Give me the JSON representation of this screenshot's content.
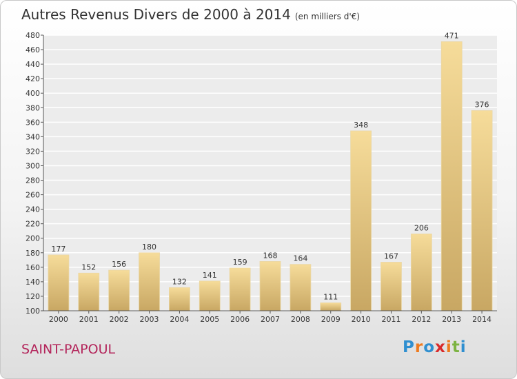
{
  "header": {
    "title": "Autres Revenus Divers de 2000 à 2014",
    "subtitle": "(en milliers d'€)"
  },
  "commune": "SAINT-PAPOUL",
  "logo": {
    "text": "Proxiti",
    "letters": [
      "P",
      "r",
      "o",
      "x",
      "i",
      "t",
      "i"
    ],
    "colors": [
      "#2f8fd0",
      "#ee7a1e",
      "#2f8fd0",
      "#d92a2a",
      "#ee7a1e",
      "#7cb342",
      "#2f8fd0"
    ]
  },
  "colors": {
    "bar_light": "#f6dc9a",
    "bar_dark": "#c8a763",
    "axis": "#555555",
    "grid": "#ffffff"
  },
  "chart_data": {
    "type": "bar",
    "categories": [
      "2000",
      "2001",
      "2002",
      "2003",
      "2004",
      "2005",
      "2006",
      "2007",
      "2008",
      "2009",
      "2010",
      "2011",
      "2012",
      "2013",
      "2014"
    ],
    "values": [
      177,
      152,
      156,
      180,
      132,
      141,
      159,
      168,
      164,
      111,
      348,
      167,
      206,
      471,
      376
    ],
    "ylim": [
      100,
      480
    ],
    "yticks": [
      100,
      120,
      140,
      160,
      180,
      200,
      220,
      240,
      260,
      280,
      300,
      320,
      340,
      360,
      380,
      400,
      420,
      440,
      460,
      480
    ],
    "grid": true,
    "legend": "none",
    "data_labels": true
  }
}
